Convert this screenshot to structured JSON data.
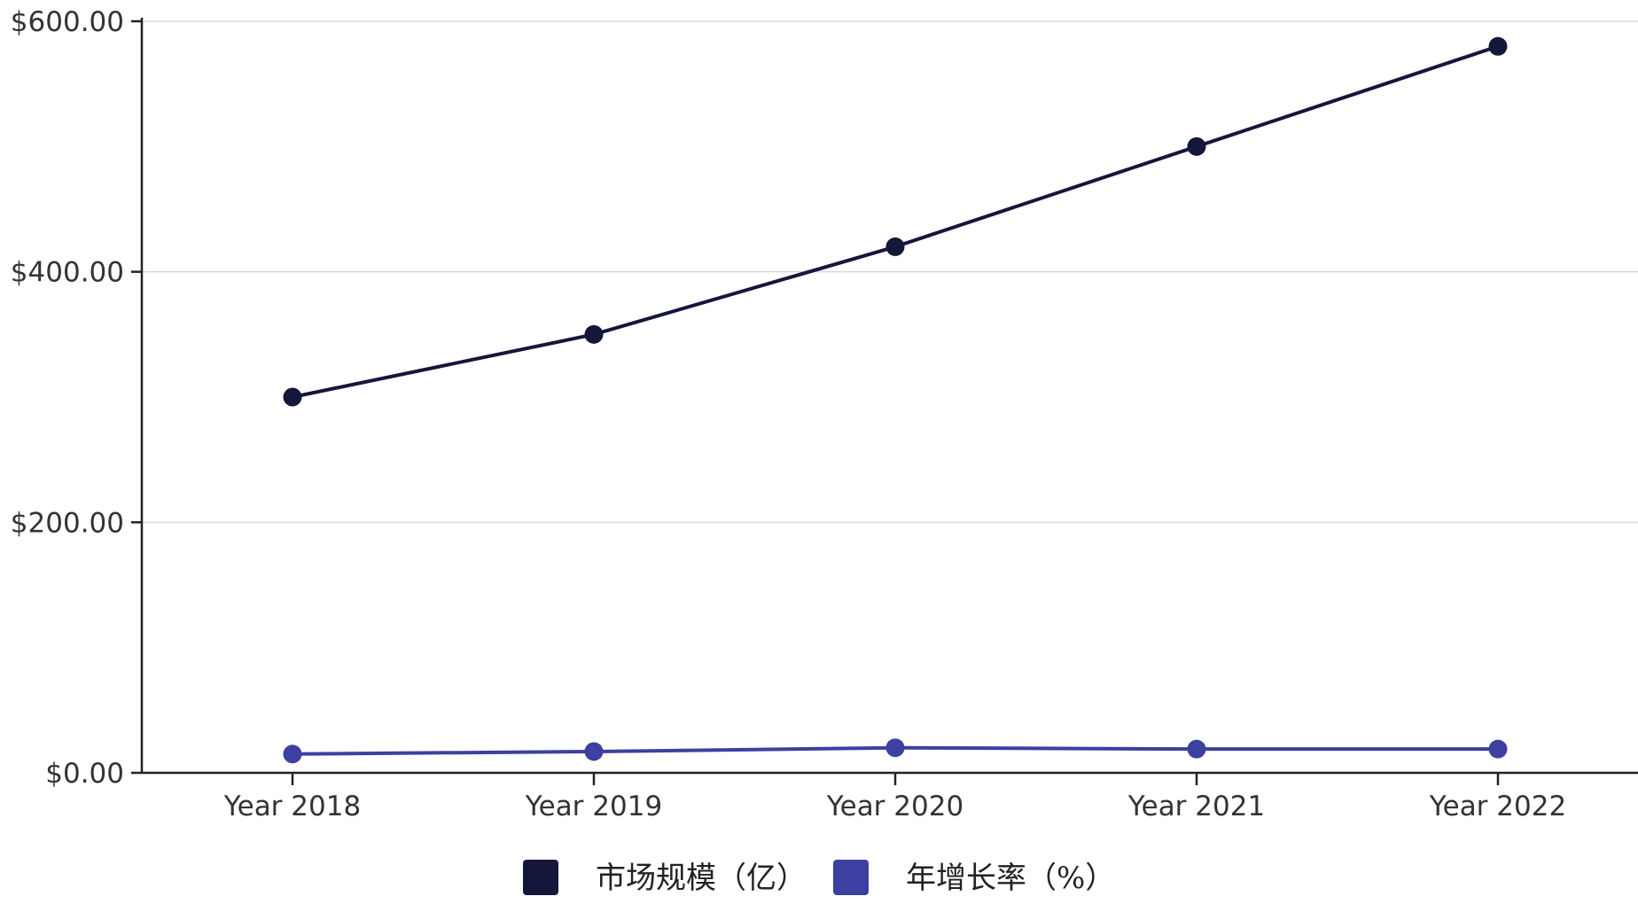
{
  "chart_data": {
    "type": "line",
    "categories": [
      "Year 2018",
      "Year 2019",
      "Year 2020",
      "Year 2021",
      "Year 2022"
    ],
    "series": [
      {
        "name": "市场规模（亿）",
        "color": "#14163a",
        "values": [
          300,
          350,
          420,
          500,
          580
        ]
      },
      {
        "name": "年增长率（%）",
        "color": "#3c40a0",
        "values": [
          15,
          17,
          20,
          19,
          19
        ]
      }
    ],
    "y_ticks": [
      0,
      200,
      400,
      600
    ],
    "y_tick_labels": [
      "$0.00",
      "$200.00",
      "$400.00",
      "$600.00"
    ],
    "ylim": [
      0,
      600
    ],
    "title": "",
    "xlabel": "",
    "ylabel": "",
    "grid": true,
    "legend_position": "bottom-center"
  }
}
